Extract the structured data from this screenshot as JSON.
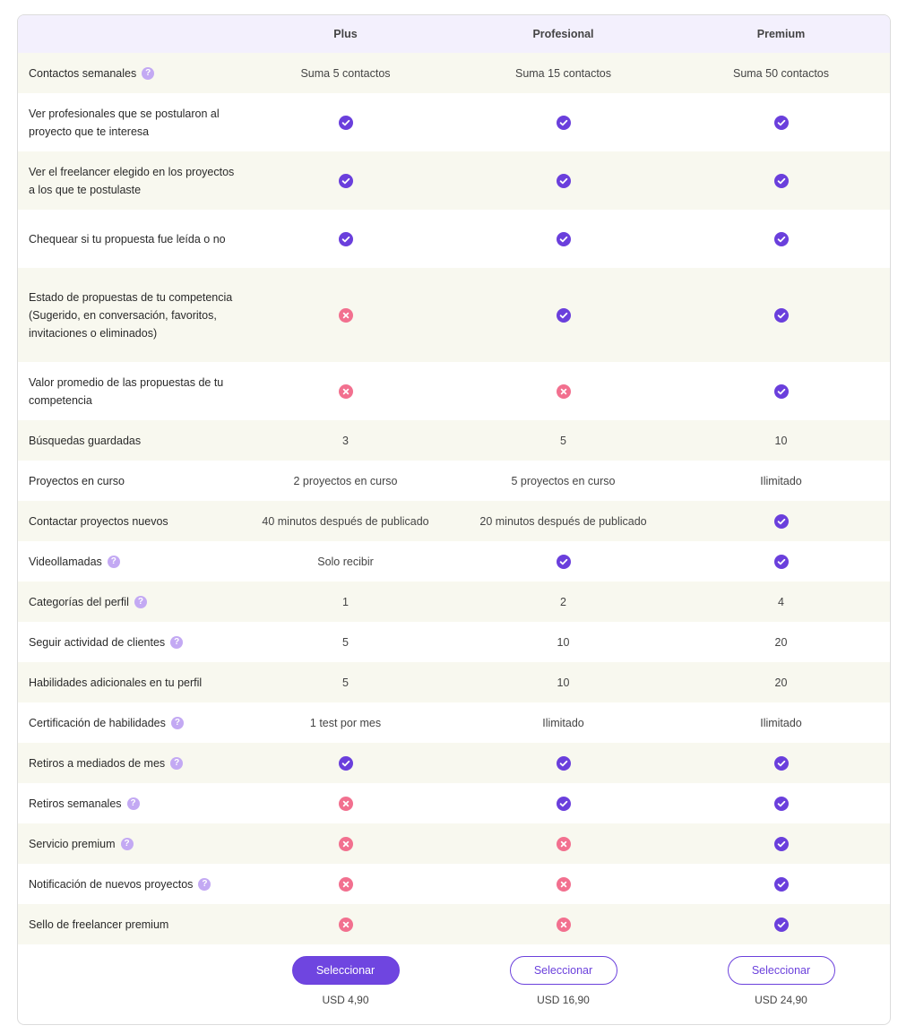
{
  "header": {
    "columns": [
      "Plus",
      "Profesional",
      "Premium"
    ]
  },
  "rows": [
    {
      "label": "Contactos semanales",
      "help": true,
      "cells": [
        "Suma 5 contactos",
        "Suma 15 contactos",
        "Suma 50 contactos"
      ]
    },
    {
      "label": "Ver profesionales que se postularon al proyecto que te interesa",
      "help": false,
      "cells": [
        true,
        true,
        true
      ]
    },
    {
      "label": "Ver el freelancer elegido en los proyectos a los que te postulaste",
      "help": false,
      "cells": [
        true,
        true,
        true
      ]
    },
    {
      "label": "Chequear si tu propuesta fue leída o no",
      "help": false,
      "cells": [
        true,
        true,
        true
      ]
    },
    {
      "label": "Estado de propuestas de tu competencia (Sugerido, en conversación, favoritos, invitaciones o eliminados)",
      "help": false,
      "cells": [
        false,
        true,
        true
      ]
    },
    {
      "label": "Valor promedio de las propuestas de tu competencia",
      "help": false,
      "cells": [
        false,
        false,
        true
      ]
    },
    {
      "label": "Búsquedas guardadas",
      "help": false,
      "cells": [
        "3",
        "5",
        "10"
      ]
    },
    {
      "label": "Proyectos en curso",
      "help": false,
      "cells": [
        "2 proyectos en curso",
        "5 proyectos en curso",
        "Ilimitado"
      ]
    },
    {
      "label": "Contactar proyectos nuevos",
      "help": false,
      "cells": [
        "40 minutos después de publicado",
        "20 minutos después de publicado",
        true
      ]
    },
    {
      "label": "Videollamadas",
      "help": true,
      "cells": [
        "Solo recibir",
        true,
        true
      ]
    },
    {
      "label": "Categorías del perfil",
      "help": true,
      "cells": [
        "1",
        "2",
        "4"
      ]
    },
    {
      "label": "Seguir actividad de clientes",
      "help": true,
      "cells": [
        "5",
        "10",
        "20"
      ]
    },
    {
      "label": "Habilidades adicionales en tu perfil",
      "help": false,
      "cells": [
        "5",
        "10",
        "20"
      ]
    },
    {
      "label": "Certificación de habilidades",
      "help": true,
      "cells": [
        "1 test por mes",
        "Ilimitado",
        "Ilimitado"
      ]
    },
    {
      "label": "Retiros a mediados de mes",
      "help": true,
      "cells": [
        true,
        true,
        true
      ]
    },
    {
      "label": "Retiros semanales",
      "help": true,
      "cells": [
        false,
        true,
        true
      ]
    },
    {
      "label": "Servicio premium",
      "help": true,
      "cells": [
        false,
        false,
        true
      ]
    },
    {
      "label": "Notificación de nuevos proyectos",
      "help": true,
      "cells": [
        false,
        false,
        true
      ]
    },
    {
      "label": "Sello de freelancer premium",
      "help": false,
      "cells": [
        false,
        false,
        true
      ]
    }
  ],
  "footer": {
    "plans": [
      {
        "button": "Seleccionar",
        "price": "USD 4,90",
        "primary": true
      },
      {
        "button": "Seleccionar",
        "price": "USD 16,90",
        "primary": false
      },
      {
        "button": "Seleccionar",
        "price": "USD 24,90",
        "primary": false
      }
    ]
  }
}
